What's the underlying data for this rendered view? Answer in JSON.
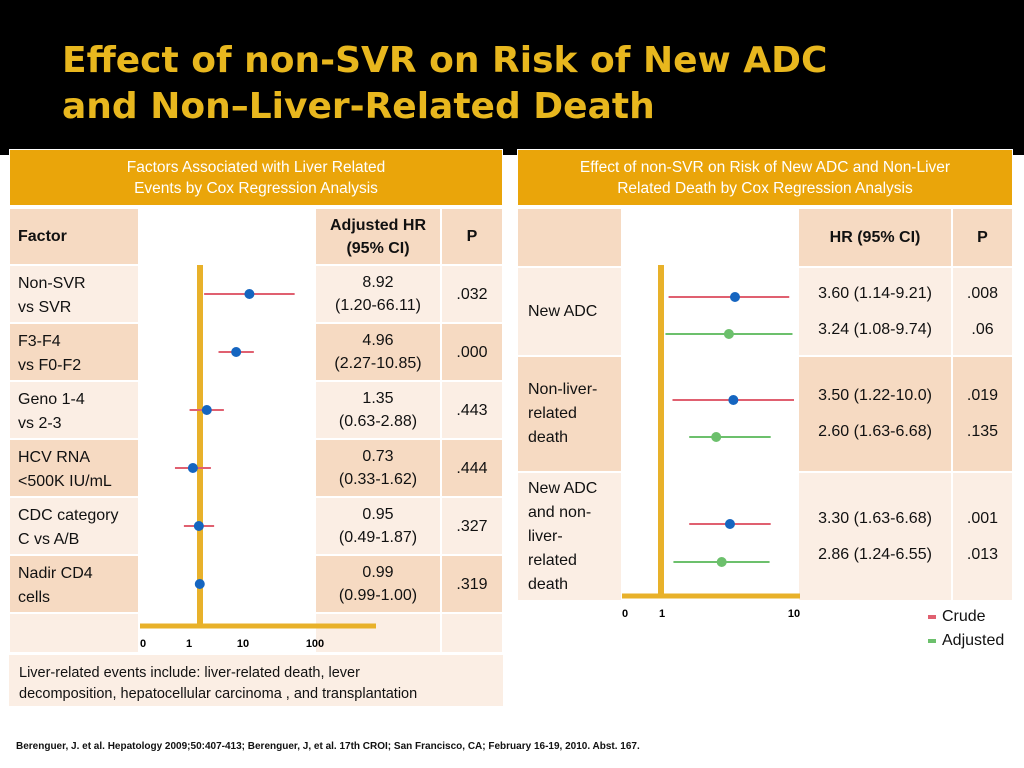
{
  "slide": {
    "title_line1": "Effect of non-SVR on Risk of New ADC",
    "title_line2": "and Non–Liver-Related Death",
    "citation": "Berenguer, J. et al. Hepatology 2009;50:407-413; Berenguer, J, et al. 17th CROI; San Francisco, CA; February 16-19, 2010. Abst. 167."
  },
  "left_table": {
    "header_line1": "Factors Associated with Liver Related",
    "header_line2": "Events by Cox Regression Analysis",
    "col_factor": "Factor",
    "col_hr_line1": "Adjusted HR",
    "col_hr_line2": "(95% CI)",
    "col_p": "P",
    "rows": [
      {
        "f1": "Non-SVR",
        "f2": "vs SVR",
        "hr": "8.92",
        "ci": "(1.20-66.11)",
        "p": ".032"
      },
      {
        "f1": "F3-F4",
        "f2": "vs F0-F2",
        "hr": "4.96",
        "ci": "(2.27-10.85)",
        "p": ".000"
      },
      {
        "f1": "Geno 1-4",
        "f2": "vs 2-3",
        "hr": "1.35",
        "ci": "(0.63-2.88)",
        "p": ".443"
      },
      {
        "f1": "HCV RNA",
        "f2": "<500K IU/mL",
        "hr": "0.73",
        "ci": "(0.33-1.62)",
        "p": ".444"
      },
      {
        "f1": "CDC category",
        "f2": "C vs A/B",
        "hr": "0.95",
        "ci": "(0.49-1.87)",
        "p": ".327"
      },
      {
        "f1": "Nadir CD4",
        "f2": "cells",
        "hr": "0.99",
        "ci": "(0.99-1.00)",
        "p": ".319"
      }
    ],
    "note_line1": "Liver-related events include: liver-related death, lever",
    "note_line2": "decomposition, hepatocellular carcinoma , and transplantation"
  },
  "right_table": {
    "header_line1": "Effect of non-SVR on Risk of New ADC and Non-Liver",
    "header_line2": "Related Death by Cox Regression Analysis",
    "col_hr": "HR (95% CI)",
    "col_p": "P",
    "rows": [
      {
        "label_lines": [
          "New ADC"
        ],
        "crude_hr": "3.60 (1.14-9.21)",
        "crude_p": ".008",
        "adj_hr": "3.24 (1.08-9.74)",
        "adj_p": ".06"
      },
      {
        "label_lines": [
          "Non-liver-",
          "related",
          "death"
        ],
        "crude_hr": "3.50 (1.22-10.0)",
        "crude_p": ".019",
        "adj_hr": "2.60 (1.63-6.68)",
        "adj_p": ".135"
      },
      {
        "label_lines": [
          "New ADC",
          "and non-",
          "liver-",
          "related",
          "death"
        ],
        "crude_hr": "3.30 (1.63-6.68)",
        "crude_p": ".001",
        "adj_hr": "2.86 (1.24-6.55)",
        "adj_p": ".013"
      }
    ]
  },
  "legend": {
    "crude": "Crude",
    "adjusted": "Adjusted"
  },
  "colors": {
    "title": "#e8b71e",
    "header": "#eaa50a",
    "ref_line": "#e8b12a",
    "point": "#1565c0",
    "crude": "#e06070",
    "adjusted": "#6cc06c",
    "adjusted_point": "#6cc06c"
  },
  "chart_data": [
    {
      "type": "forest",
      "scale": "log",
      "reference": 1,
      "tick_labels": [
        "0",
        "1",
        "10",
        "100"
      ],
      "series": [
        {
          "values": [
            {
              "category": "Non-SVR vs SVR",
              "hr": 8.92,
              "low": 1.2,
              "high": 66.11
            },
            {
              "category": "F3-F4 vs F0-F2",
              "hr": 4.96,
              "low": 2.27,
              "high": 10.85
            },
            {
              "category": "Geno 1-4 vs 2-3",
              "hr": 1.35,
              "low": 0.63,
              "high": 2.88
            },
            {
              "category": "HCV RNA <500K IU/mL",
              "hr": 0.73,
              "low": 0.33,
              "high": 1.62
            },
            {
              "category": "CDC category C vs A/B",
              "hr": 0.95,
              "low": 0.49,
              "high": 1.87
            },
            {
              "category": "Nadir CD4 cells",
              "hr": 0.99,
              "low": 0.99,
              "high": 1.0
            }
          ]
        }
      ]
    },
    {
      "type": "forest",
      "scale": "log",
      "reference": 1,
      "tick_labels": [
        "0",
        "1",
        "10"
      ],
      "series": [
        {
          "name": "Crude",
          "values": [
            {
              "category": "New ADC",
              "hr": 3.6,
              "low": 1.14,
              "high": 9.21
            },
            {
              "category": "Non-liver-related death",
              "hr": 3.5,
              "low": 1.22,
              "high": 10.0
            },
            {
              "category": "New ADC and non-liver-related death",
              "hr": 3.3,
              "low": 1.63,
              "high": 6.68
            }
          ]
        },
        {
          "name": "Adjusted",
          "values": [
            {
              "category": "New ADC",
              "hr": 3.24,
              "low": 1.08,
              "high": 9.74
            },
            {
              "category": "Non-liver-related death",
              "hr": 2.6,
              "low": 1.63,
              "high": 6.68
            },
            {
              "category": "New ADC and non-liver-related death",
              "hr": 2.86,
              "low": 1.24,
              "high": 6.55
            }
          ]
        }
      ]
    }
  ]
}
